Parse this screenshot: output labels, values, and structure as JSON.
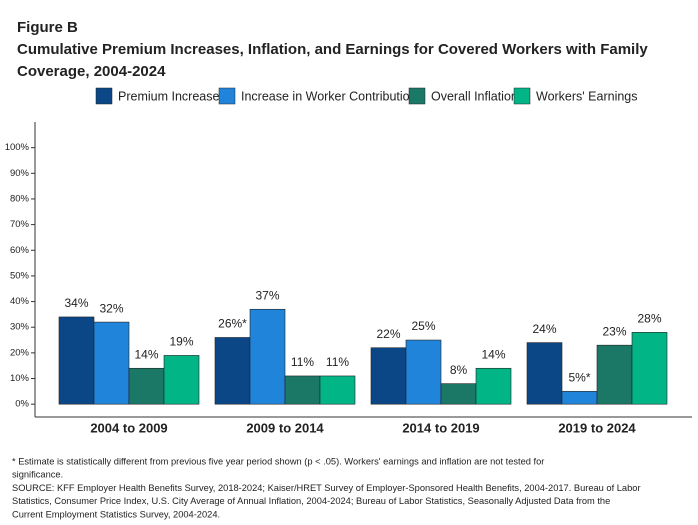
{
  "chart_data": {
    "type": "bar",
    "figure_label": "Figure B",
    "title_lines": [
      "Cumulative Premium Increases, Inflation, and Earnings for Covered Workers with Family",
      "Coverage, 2004-2024"
    ],
    "categories": [
      "2004 to 2009",
      "2009 to 2014",
      "2014 to 2019",
      "2019 to 2024"
    ],
    "series": [
      {
        "name": "Premium Increase",
        "color": "#0b4786",
        "values": [
          34,
          26,
          22,
          24
        ],
        "value_labels": [
          "34%",
          "26%*",
          "22%",
          "24%"
        ]
      },
      {
        "name": "Increase in Worker Contribution",
        "color": "#1f84da",
        "values": [
          32,
          37,
          25,
          5
        ],
        "value_labels": [
          "32%",
          "37%",
          "25%",
          "5%*"
        ]
      },
      {
        "name": "Overall Inflation",
        "color": "#1b7866",
        "values": [
          14,
          11,
          8,
          23
        ],
        "value_labels": [
          "14%",
          "11%",
          "8%",
          "23%"
        ]
      },
      {
        "name": "Workers' Earnings",
        "color": "#02b587",
        "values": [
          19,
          11,
          14,
          28
        ],
        "value_labels": [
          "19%",
          "11%",
          "14%",
          "28%"
        ]
      }
    ],
    "ylim": [
      -5,
      110
    ],
    "yticks": [
      {
        "value": 0,
        "label": "0%"
      },
      {
        "value": 10,
        "label": "10%"
      },
      {
        "value": 20,
        "label": "20%"
      },
      {
        "value": 30,
        "label": "30%"
      },
      {
        "value": 40,
        "label": "40%"
      },
      {
        "value": 50,
        "label": "50%"
      },
      {
        "value": 60,
        "label": "60%"
      },
      {
        "value": 70,
        "label": "70%"
      },
      {
        "value": 80,
        "label": "80%"
      },
      {
        "value": 90,
        "label": "90%"
      },
      {
        "value": 100,
        "label": "100%"
      }
    ],
    "grid": false,
    "legend": "top",
    "footnote_lines": [
      "* Estimate is statistically different from previous five year period shown (p < .05). Workers' earnings and inflation are not tested for",
      "significance.",
      "SOURCE: KFF Employer Health Benefits Survey, 2018-2024; Kaiser/HRET Survey of Employer-Sponsored Health Benefits, 2004-2017. Bureau of Labor",
      "Statistics, Consumer Price Index, U.S. City Average of Annual Inflation, 2004-2024; Bureau of Labor Statistics, Seasonally Adjusted Data from the",
      "Current Employment Statistics Survey, 2004-2024."
    ]
  }
}
